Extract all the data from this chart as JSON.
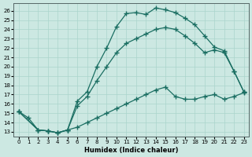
{
  "xlabel": "Humidex (Indice chaleur)",
  "bg_color": "#cce8e2",
  "grid_color": "#aad4cc",
  "line_color": "#1a6e62",
  "xlim": [
    -0.5,
    23.5
  ],
  "ylim": [
    12.5,
    26.8
  ],
  "xticks": [
    0,
    1,
    2,
    3,
    4,
    5,
    6,
    7,
    8,
    9,
    10,
    11,
    12,
    13,
    14,
    15,
    16,
    17,
    18,
    19,
    20,
    21,
    22,
    23
  ],
  "yticks": [
    13,
    14,
    15,
    16,
    17,
    18,
    19,
    20,
    21,
    22,
    23,
    24,
    25,
    26
  ],
  "line1_x": [
    0,
    1,
    2,
    3,
    4,
    5,
    6,
    7,
    8,
    9,
    10,
    11,
    12,
    13,
    14,
    15,
    16,
    17,
    18,
    19,
    20,
    21,
    22,
    23
  ],
  "line1_y": [
    15.2,
    14.5,
    13.2,
    13.1,
    12.9,
    13.2,
    16.3,
    17.3,
    20.0,
    22.0,
    24.3,
    25.7,
    25.8,
    25.6,
    26.3,
    26.1,
    25.8,
    25.2,
    24.5,
    23.3,
    22.1,
    21.7,
    19.5,
    17.3
  ],
  "line2_x": [
    0,
    2,
    3,
    4,
    5,
    6,
    7,
    8,
    9,
    10,
    11,
    12,
    13,
    14,
    15,
    16,
    17,
    18,
    19,
    20,
    21,
    22,
    23
  ],
  "line2_y": [
    15.2,
    13.2,
    13.1,
    12.9,
    13.2,
    15.8,
    16.8,
    18.5,
    20.0,
    21.5,
    22.5,
    23.0,
    23.5,
    24.0,
    24.2,
    24.0,
    23.3,
    22.5,
    21.5,
    21.8,
    21.5,
    19.5,
    17.3
  ],
  "line3_x": [
    0,
    2,
    3,
    4,
    5,
    6,
    7,
    8,
    9,
    10,
    11,
    12,
    13,
    14,
    15,
    16,
    17,
    18,
    19,
    20,
    21,
    22,
    23
  ],
  "line3_y": [
    15.2,
    13.2,
    13.1,
    12.9,
    13.2,
    13.5,
    14.0,
    14.5,
    15.0,
    15.5,
    16.0,
    16.5,
    17.0,
    17.5,
    17.8,
    16.8,
    16.5,
    16.5,
    16.8,
    17.0,
    16.5,
    16.8,
    17.2
  ]
}
